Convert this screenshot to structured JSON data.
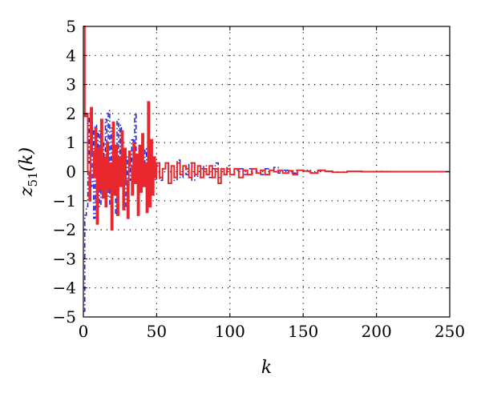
{
  "chart_data": {
    "type": "line",
    "title": "",
    "xlabel": "k",
    "ylabel": {
      "base": "z",
      "subscript": "51",
      "arg": "(k)"
    },
    "xlim": [
      0,
      250
    ],
    "ylim": [
      -5,
      5
    ],
    "xticks": [
      0,
      50,
      100,
      150,
      200,
      250
    ],
    "yticks": [
      -5,
      -4,
      -3,
      -2,
      -1,
      0,
      1,
      2,
      3,
      4,
      5
    ],
    "grid": true,
    "legend": "none",
    "series": [
      {
        "style": "dash-dot",
        "color": "#1f1fdc",
        "x": [
          0,
          1,
          2,
          3,
          4,
          5,
          6,
          7,
          8,
          9,
          10,
          11,
          12,
          13,
          14,
          15,
          16,
          17,
          18,
          19,
          20,
          21,
          22,
          23,
          24,
          25,
          26,
          27,
          28,
          29,
          30,
          31,
          32,
          33,
          34,
          35,
          36,
          37,
          38,
          39,
          40,
          41,
          42,
          43,
          44,
          45,
          46,
          47,
          48,
          49,
          50,
          52,
          54,
          56,
          58,
          60,
          62,
          64,
          66,
          68,
          70,
          72,
          74,
          76,
          78,
          80,
          82,
          84,
          86,
          88,
          90,
          92,
          94,
          96,
          98,
          100,
          103,
          106,
          109,
          112,
          115,
          118,
          121,
          124,
          127,
          130,
          133,
          136,
          140,
          145,
          150,
          155,
          160,
          165,
          170,
          180,
          190,
          200,
          210,
          220,
          230,
          240,
          250
        ],
        "y": [
          -4.8,
          -1.5,
          -1.2,
          0.3,
          1.9,
          -0.5,
          1.5,
          -1.6,
          1.6,
          -1.0,
          1.4,
          -1.2,
          0.6,
          1.0,
          -0.8,
          1.8,
          -0.9,
          2.1,
          -1.2,
          1.5,
          -0.6,
          0.9,
          -1.5,
          1.8,
          -0.5,
          1.6,
          -0.4,
          0.3,
          -1.3,
          0.5,
          -0.9,
          0.4,
          -0.3,
          1.1,
          -0.4,
          2.0,
          -0.4,
          -0.7,
          0.6,
          -0.2,
          1.2,
          -0.5,
          0.8,
          -0.6,
          2.1,
          -1.0,
          0.3,
          -0.4,
          0.5,
          -0.3,
          0.2,
          -0.3,
          0.1,
          0.3,
          -0.4,
          0.2,
          -0.3,
          0.4,
          -0.2,
          0.2,
          -0.1,
          0.3,
          -0.3,
          0.1,
          -0.2,
          0.1,
          0.2,
          -0.1,
          -0.2,
          0.1,
          0.3,
          -0.2,
          0.1,
          -0.1,
          0.2,
          -0.1,
          0.05,
          0.1,
          -0.1,
          0.1,
          -0.05,
          0.05,
          -0.1,
          0.1,
          0.05,
          0.15,
          -0.05,
          0.05,
          -0.05,
          0.05,
          0.05,
          -0.03,
          0.03,
          0.02,
          -0.02,
          0.01,
          0.0,
          0.01,
          0.0,
          0.0,
          0.0,
          0.0,
          0.0
        ]
      },
      {
        "style": "solid",
        "color": "#e8282e",
        "x": [
          0,
          1,
          2,
          3,
          4,
          5,
          6,
          7,
          8,
          9,
          10,
          11,
          12,
          13,
          14,
          15,
          16,
          17,
          18,
          19,
          20,
          21,
          22,
          23,
          24,
          25,
          26,
          27,
          28,
          29,
          30,
          31,
          32,
          33,
          34,
          35,
          36,
          37,
          38,
          39,
          40,
          41,
          42,
          43,
          44,
          45,
          46,
          47,
          48,
          49,
          50,
          52,
          54,
          56,
          58,
          60,
          62,
          64,
          66,
          68,
          70,
          72,
          74,
          76,
          78,
          80,
          82,
          84,
          86,
          88,
          90,
          92,
          94,
          96,
          98,
          100,
          103,
          106,
          109,
          112,
          115,
          118,
          121,
          124,
          127,
          130,
          133,
          136,
          140,
          143,
          146,
          150,
          155,
          160,
          165,
          170,
          180,
          190,
          200,
          210,
          220,
          230,
          240,
          250
        ],
        "y": [
          5.0,
          1.9,
          2.0,
          0.0,
          -1.0,
          2.2,
          0.7,
          -0.2,
          1.5,
          -1.8,
          0.8,
          -0.6,
          1.8,
          -0.9,
          0.5,
          -1.2,
          1.0,
          -0.6,
          0.3,
          -2.0,
          1.7,
          -0.8,
          0.9,
          -1.5,
          0.5,
          -0.5,
          1.4,
          -1.3,
          0.8,
          -0.3,
          -1.6,
          0.7,
          0.2,
          -0.8,
          1.0,
          -0.4,
          0.6,
          -1.5,
          0.9,
          -0.7,
          1.3,
          -0.5,
          0.3,
          -1.4,
          2.4,
          -1.2,
          1.1,
          -0.8,
          0.5,
          -0.2,
          0.3,
          -0.2,
          0.1,
          0.3,
          -0.4,
          0.2,
          -0.2,
          0.3,
          -0.1,
          0.2,
          0.1,
          -0.2,
          0.3,
          -0.1,
          0.2,
          -0.2,
          0.1,
          -0.1,
          0.2,
          -0.2,
          0.1,
          -0.4,
          0.1,
          -0.1,
          0.1,
          -0.1,
          0.1,
          -0.2,
          0.05,
          -0.1,
          0.1,
          -0.05,
          0.05,
          -0.1,
          0.05,
          0.0,
          0.05,
          -0.05,
          0.03,
          -0.1,
          0.05,
          0.02,
          -0.05,
          0.05,
          0.01,
          -0.02,
          0.01,
          0.0,
          0.0,
          0.0,
          0.0,
          0.0,
          0.0,
          0.0
        ]
      }
    ]
  }
}
